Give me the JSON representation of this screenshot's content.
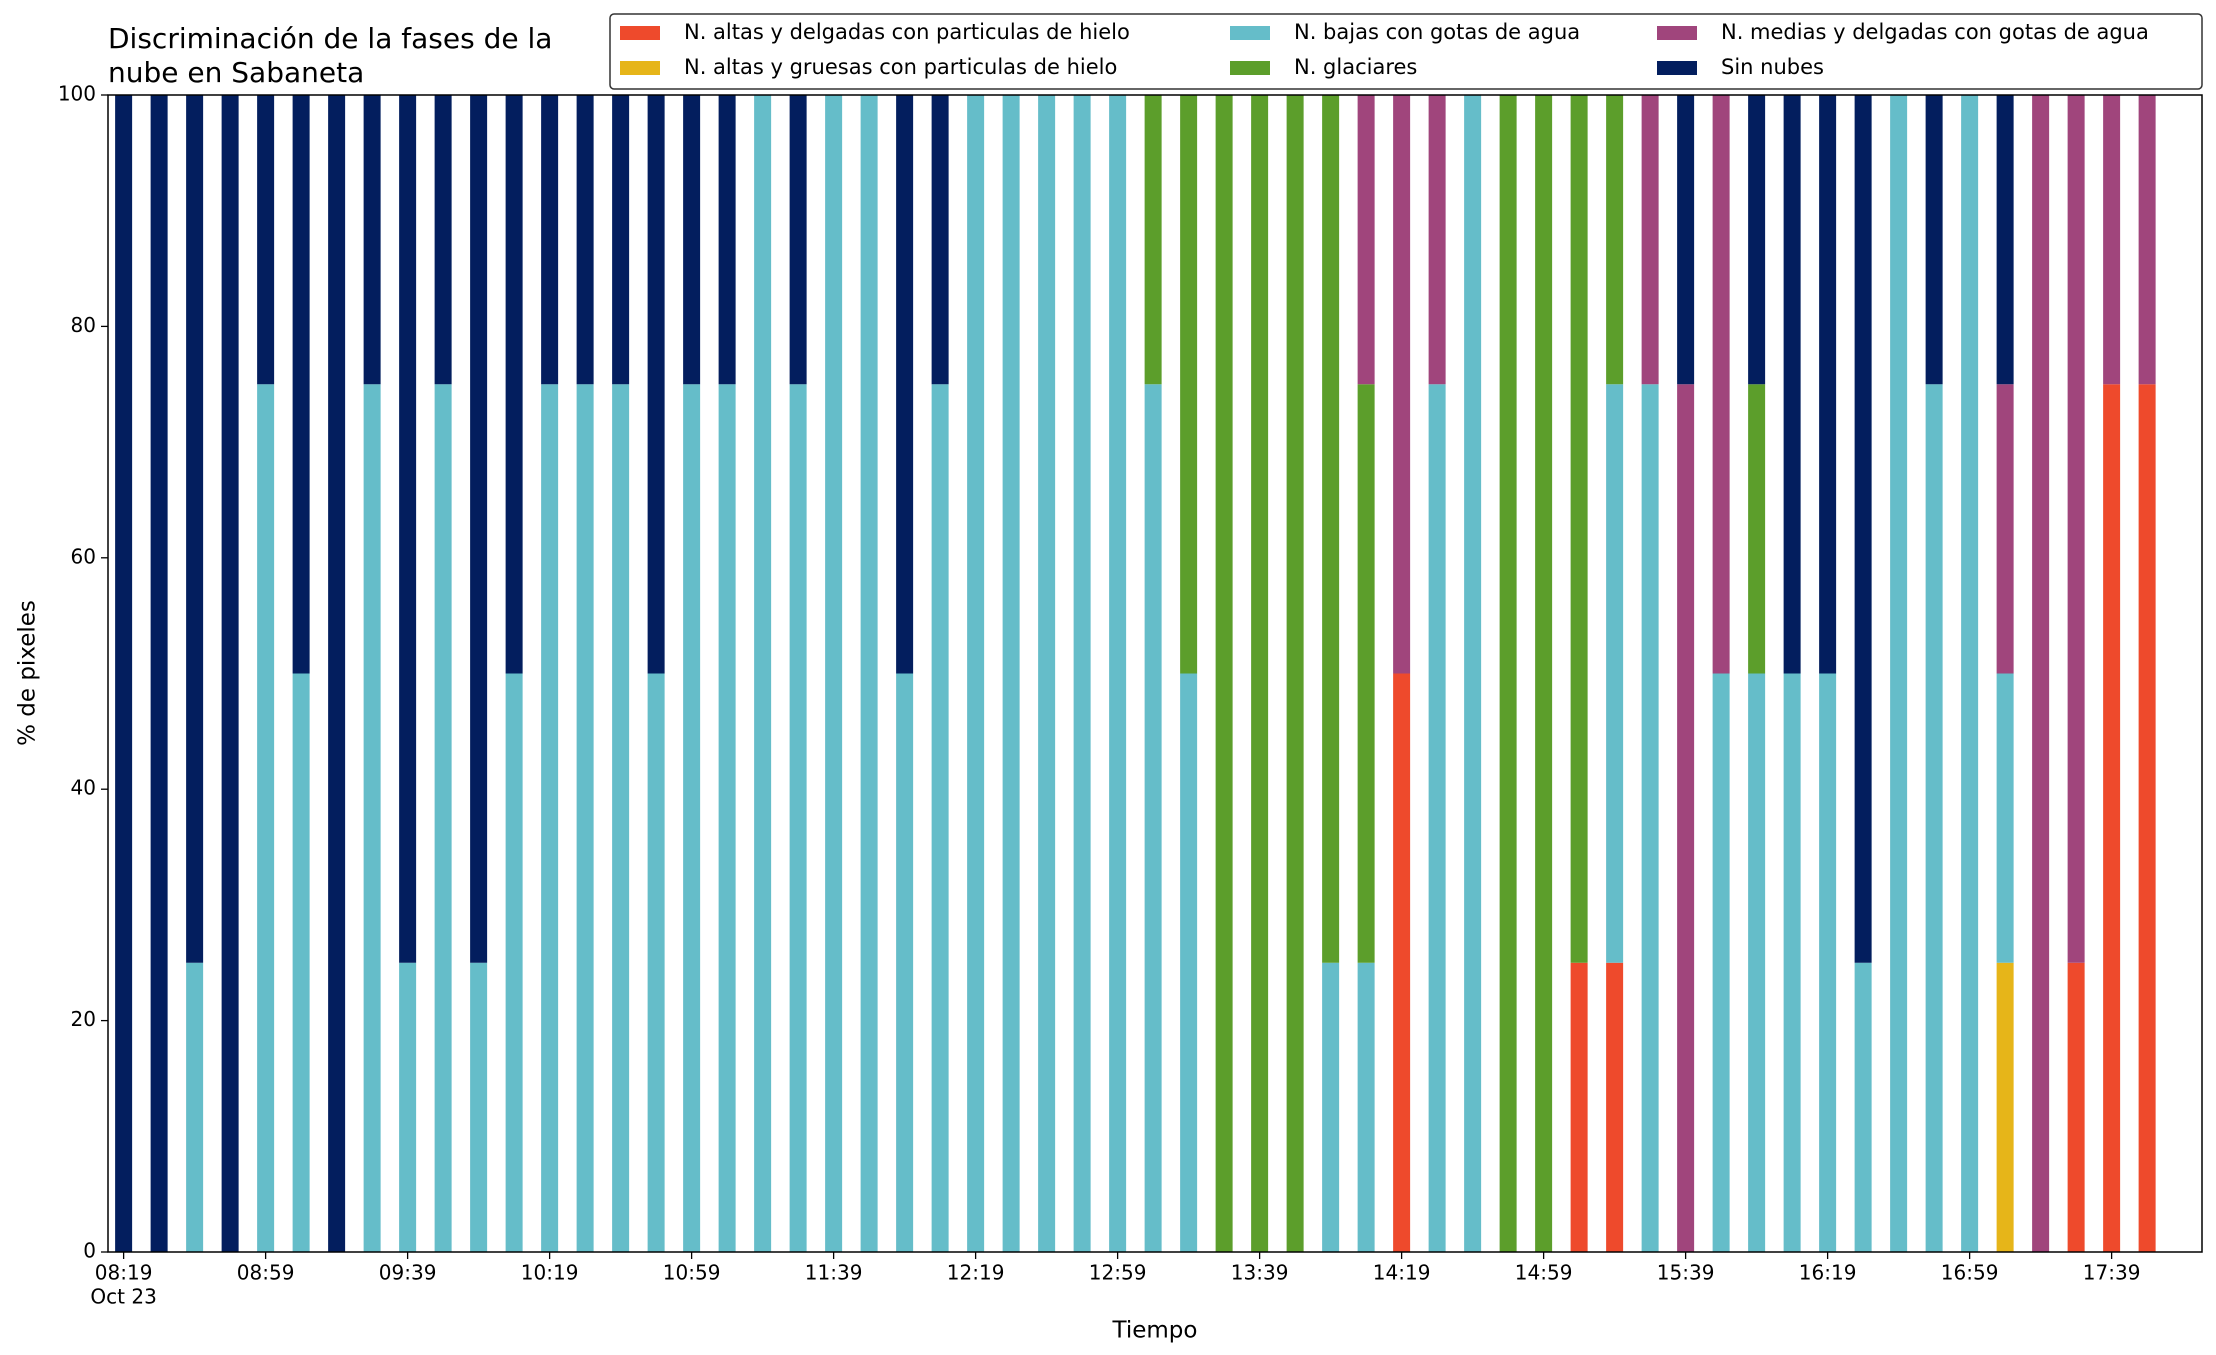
{
  "chart_data": {
    "type": "bar",
    "stacked": true,
    "title_lines": [
      "Discriminación de la fases de la",
      "nube en Sabaneta"
    ],
    "x_label": "Tiempo",
    "y_label": "% de pixeles",
    "categories": [
      "08:19",
      null,
      null,
      null,
      "08:59",
      null,
      null,
      null,
      "09:39",
      null,
      null,
      null,
      "10:19",
      null,
      null,
      null,
      "10:59",
      null,
      null,
      null,
      "11:39",
      null,
      null,
      null,
      "12:19",
      null,
      null,
      null,
      "12:59",
      null,
      null,
      null,
      "13:39",
      null,
      null,
      null,
      "14:19",
      null,
      null,
      null,
      "14:59",
      null,
      null,
      null,
      "15:39",
      null,
      null,
      null,
      "16:19",
      null,
      null,
      null,
      "16:59",
      null,
      null,
      null,
      "17:39",
      null
    ],
    "x_sublabel": "Oct 23",
    "ylim": [
      0,
      100
    ],
    "yticks": [
      0,
      20,
      40,
      60,
      80,
      100
    ],
    "series": [
      {
        "name": "N. altas y delgadas con particulas de hielo",
        "color": "#ee4a2c",
        "values": [
          0,
          0,
          0,
          0,
          0,
          0,
          0,
          0,
          0,
          0,
          0,
          0,
          0,
          0,
          0,
          0,
          0,
          0,
          0,
          0,
          0,
          0,
          0,
          0,
          0,
          0,
          0,
          0,
          0,
          0,
          0,
          0,
          0,
          0,
          0,
          0,
          50,
          0,
          0,
          0,
          0,
          25,
          25,
          0,
          0,
          0,
          0,
          0,
          0,
          0,
          0,
          0,
          0,
          0,
          0,
          25,
          75,
          75
        ]
      },
      {
        "name": "N. altas y gruesas con particulas de hielo",
        "color": "#e6b519",
        "values": [
          0,
          0,
          0,
          0,
          0,
          0,
          0,
          0,
          0,
          0,
          0,
          0,
          0,
          0,
          0,
          0,
          0,
          0,
          0,
          0,
          0,
          0,
          0,
          0,
          0,
          0,
          0,
          0,
          0,
          0,
          0,
          0,
          0,
          0,
          0,
          0,
          0,
          0,
          0,
          0,
          0,
          0,
          0,
          0,
          0,
          0,
          0,
          0,
          0,
          0,
          0,
          0,
          0,
          25,
          0,
          0,
          0,
          0
        ]
      },
      {
        "name": "N. bajas con gotas de agua",
        "color": "#65bdc9",
        "values": [
          0,
          0,
          25,
          0,
          75,
          50,
          0,
          75,
          25,
          75,
          25,
          50,
          75,
          75,
          75,
          50,
          75,
          75,
          100,
          75,
          100,
          100,
          50,
          75,
          100,
          100,
          100,
          100,
          100,
          75,
          50,
          0,
          0,
          0,
          25,
          25,
          0,
          75,
          100,
          0,
          0,
          0,
          50,
          75,
          0,
          50,
          50,
          50,
          50,
          25,
          100,
          75,
          100,
          25,
          0,
          0,
          0,
          0
        ]
      },
      {
        "name": "N. glaciares",
        "color": "#5c9e2b",
        "values": [
          0,
          0,
          0,
          0,
          0,
          0,
          0,
          0,
          0,
          0,
          0,
          0,
          0,
          0,
          0,
          0,
          0,
          0,
          0,
          0,
          0,
          0,
          0,
          0,
          0,
          0,
          0,
          0,
          0,
          25,
          50,
          100,
          100,
          100,
          75,
          50,
          0,
          0,
          0,
          100,
          100,
          75,
          25,
          0,
          0,
          0,
          25,
          0,
          0,
          0,
          0,
          0,
          0,
          0,
          0,
          0,
          0,
          0
        ]
      },
      {
        "name": "N. medias y delgadas con gotas de agua",
        "color": "#a0457c",
        "values": [
          0,
          0,
          0,
          0,
          0,
          0,
          0,
          0,
          0,
          0,
          0,
          0,
          0,
          0,
          0,
          0,
          0,
          0,
          0,
          0,
          0,
          0,
          0,
          0,
          0,
          0,
          0,
          0,
          0,
          0,
          0,
          0,
          0,
          0,
          0,
          25,
          50,
          25,
          0,
          0,
          0,
          0,
          0,
          25,
          75,
          50,
          0,
          0,
          0,
          0,
          0,
          0,
          0,
          25,
          100,
          75,
          25,
          25
        ]
      },
      {
        "name": "Sin nubes",
        "color": "#031e5e",
        "values": [
          100,
          100,
          75,
          100,
          25,
          50,
          100,
          25,
          75,
          25,
          75,
          50,
          25,
          25,
          25,
          50,
          25,
          25,
          0,
          25,
          0,
          0,
          50,
          25,
          0,
          0,
          0,
          0,
          0,
          0,
          0,
          0,
          0,
          0,
          0,
          0,
          0,
          0,
          0,
          0,
          0,
          0,
          0,
          0,
          25,
          0,
          25,
          50,
          50,
          75,
          0,
          25,
          0,
          25,
          0,
          0,
          0,
          0
        ]
      }
    ]
  }
}
